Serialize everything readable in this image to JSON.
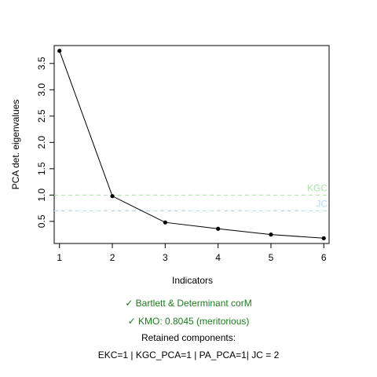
{
  "chart_data": {
    "type": "line",
    "xlabel": "Indicators",
    "ylabel": "PCA det. eigenvalues",
    "x": [
      1,
      2,
      3,
      4,
      5,
      6
    ],
    "values": [
      3.74,
      0.98,
      0.48,
      0.36,
      0.25,
      0.18
    ],
    "xlim": [
      0.9,
      6.1
    ],
    "ylim": [
      0.08,
      3.84
    ],
    "xticks": [
      "1",
      "2",
      "3",
      "4",
      "5",
      "6"
    ],
    "yticks": [
      "0.5",
      "1.0",
      "1.5",
      "2.0",
      "2.5",
      "3.0",
      "3.5"
    ],
    "ytick_values": [
      0.5,
      1.0,
      1.5,
      2.0,
      2.5,
      3.0,
      3.5
    ],
    "reference_lines": [
      {
        "label": "KGC",
        "y": 1.0,
        "color": "#a8e4a8"
      },
      {
        "label": "JC",
        "y": 0.7,
        "color": "#aee0ee"
      }
    ],
    "grid": false
  },
  "captions": {
    "bartlett": "✓ Bartlett & Determinant corM",
    "kmo": "✓ KMO: 0.8045 (meritorious)",
    "retained": "Retained components:",
    "summary": "EKC=1 | KGC_PCA=1 | PA_PCA=1| JC = 2"
  },
  "colors": {
    "check_green": "#1f7a1f"
  }
}
